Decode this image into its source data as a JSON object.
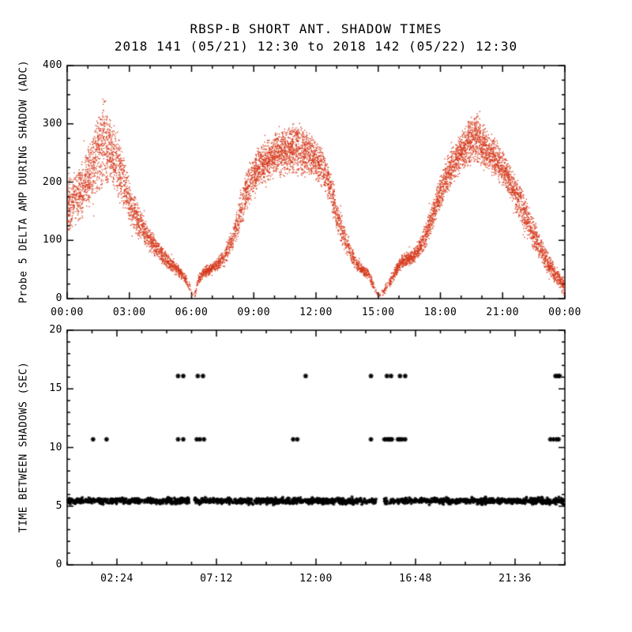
{
  "page": {
    "background": "#ffffff",
    "text_color": "#000000"
  },
  "title": "RBSP-B SHORT ANT. SHADOW TIMES",
  "subtitle": "2018 141 (05/21) 12:30 to 2018 142 (05/22) 12:30",
  "chart_data": [
    {
      "type": "scatter",
      "name": "probe-5-delta-amp-during-shadow",
      "ylabel": "Probe 5 DELTA AMP DURING SHADOW (ADC)",
      "xlim": [
        0,
        24
      ],
      "ylim": [
        0,
        400
      ],
      "xticks": [
        {
          "value": 0,
          "label": "00:00"
        },
        {
          "value": 3,
          "label": "03:00"
        },
        {
          "value": 6,
          "label": "06:00"
        },
        {
          "value": 9,
          "label": "09:00"
        },
        {
          "value": 12,
          "label": "12:00"
        },
        {
          "value": 15,
          "label": "15:00"
        },
        {
          "value": 18,
          "label": "18:00"
        },
        {
          "value": 21,
          "label": "21:00"
        },
        {
          "value": 24,
          "label": "00:00"
        }
      ],
      "yticks": [
        0,
        100,
        200,
        300,
        400
      ],
      "x_minor_step": 1,
      "y_minor_step": 25,
      "marker": "dot",
      "color": "#d5381b",
      "grid": false,
      "points_per_hour": 420,
      "envelope": {
        "format": [
          "hour",
          "min_adc",
          "max_adc",
          "density"
        ],
        "points": [
          [
            0.0,
            110,
            210,
            1.0
          ],
          [
            0.4,
            120,
            225,
            1.0
          ],
          [
            0.8,
            140,
            245,
            1.05
          ],
          [
            1.2,
            160,
            285,
            1.1
          ],
          [
            1.5,
            180,
            330,
            1.15
          ],
          [
            1.75,
            195,
            365,
            1.15
          ],
          [
            1.95,
            195,
            330,
            1.1
          ],
          [
            2.15,
            185,
            305,
            1.05
          ],
          [
            2.4,
            170,
            295,
            1.0
          ],
          [
            2.7,
            148,
            250,
            0.95
          ],
          [
            3.0,
            125,
            205,
            0.9
          ],
          [
            3.4,
            105,
            165,
            0.85
          ],
          [
            3.8,
            88,
            135,
            0.8
          ],
          [
            4.2,
            72,
            110,
            0.75
          ],
          [
            4.6,
            58,
            90,
            0.7
          ],
          [
            5.0,
            46,
            72,
            0.7
          ],
          [
            5.4,
            36,
            56,
            0.65
          ],
          [
            5.7,
            26,
            42,
            0.5
          ],
          [
            5.9,
            12,
            28,
            0.2
          ],
          [
            6.0,
            0,
            10,
            0.06
          ],
          [
            6.15,
            2,
            14,
            0.1
          ],
          [
            6.3,
            24,
            44,
            0.5
          ],
          [
            6.6,
            36,
            58,
            0.8
          ],
          [
            6.9,
            42,
            62,
            0.8
          ],
          [
            7.2,
            48,
            70,
            0.6
          ],
          [
            7.6,
            58,
            88,
            0.6
          ],
          [
            8.0,
            85,
            135,
            0.7
          ],
          [
            8.4,
            125,
            195,
            0.85
          ],
          [
            8.8,
            165,
            245,
            0.95
          ],
          [
            9.2,
            190,
            262,
            1.1
          ],
          [
            9.6,
            200,
            275,
            1.1
          ],
          [
            10.0,
            205,
            288,
            1.15
          ],
          [
            10.4,
            210,
            298,
            1.2
          ],
          [
            10.8,
            212,
            302,
            1.2
          ],
          [
            11.2,
            208,
            308,
            1.15
          ],
          [
            11.5,
            205,
            298,
            1.1
          ],
          [
            11.8,
            202,
            285,
            1.05
          ],
          [
            12.1,
            198,
            272,
            1.0
          ],
          [
            12.4,
            185,
            255,
            0.95
          ],
          [
            12.7,
            150,
            220,
            0.9
          ],
          [
            13.0,
            112,
            175,
            0.8
          ],
          [
            13.4,
            76,
            122,
            0.7
          ],
          [
            13.8,
            52,
            82,
            0.6
          ],
          [
            14.2,
            40,
            60,
            0.6
          ],
          [
            14.5,
            33,
            52,
            0.7
          ],
          [
            14.75,
            15,
            32,
            0.25
          ],
          [
            14.95,
            0,
            10,
            0.05
          ],
          [
            15.2,
            3,
            18,
            0.15
          ],
          [
            15.5,
            18,
            38,
            0.4
          ],
          [
            15.8,
            35,
            58,
            0.7
          ],
          [
            16.1,
            52,
            76,
            0.9
          ],
          [
            16.4,
            56,
            82,
            0.95
          ],
          [
            16.7,
            58,
            88,
            0.85
          ],
          [
            17.0,
            70,
            108,
            0.85
          ],
          [
            17.4,
            96,
            148,
            0.9
          ],
          [
            17.8,
            135,
            195,
            1.0
          ],
          [
            18.2,
            170,
            238,
            1.05
          ],
          [
            18.6,
            195,
            268,
            1.1
          ],
          [
            19.0,
            215,
            292,
            1.15
          ],
          [
            19.4,
            228,
            318,
            1.2
          ],
          [
            19.7,
            230,
            330,
            1.2
          ],
          [
            20.0,
            222,
            305,
            1.15
          ],
          [
            20.4,
            212,
            288,
            1.1
          ],
          [
            20.8,
            198,
            268,
            1.05
          ],
          [
            21.2,
            178,
            245,
            1.0
          ],
          [
            21.6,
            148,
            215,
            0.95
          ],
          [
            22.0,
            118,
            182,
            0.9
          ],
          [
            22.4,
            88,
            148,
            0.85
          ],
          [
            22.8,
            62,
            112,
            0.85
          ],
          [
            23.2,
            40,
            80,
            0.8
          ],
          [
            23.6,
            20,
            58,
            0.8
          ],
          [
            23.95,
            5,
            38,
            0.7
          ]
        ]
      }
    },
    {
      "type": "scatter",
      "name": "time-between-shadows",
      "ylabel": "TIME BETWEEN SHADOWS (SEC)",
      "xlim": [
        0,
        24
      ],
      "ylim": [
        0,
        20
      ],
      "xticks": [
        {
          "value": 2.4,
          "label": "02:24"
        },
        {
          "value": 7.2,
          "label": "07:12"
        },
        {
          "value": 12.0,
          "label": "12:00"
        },
        {
          "value": 16.8,
          "label": "16:48"
        },
        {
          "value": 21.6,
          "label": "21:36"
        }
      ],
      "yticks": [
        0,
        5,
        10,
        15,
        20
      ],
      "x_minor_step": 1.2,
      "y_minor_step": 1,
      "marker": "asterisk",
      "color": "#000000",
      "grid": false,
      "y_levels_sec": [
        5.45,
        10.7,
        16.1
      ],
      "band": {
        "y": 5.45,
        "x_start": 0.05,
        "x_end": 23.95,
        "gaps": [
          [
            5.88,
            6.14
          ],
          [
            14.9,
            15.28
          ]
        ],
        "count": 1500,
        "jitter": 0.12
      },
      "clusters": [
        {
          "y": 10.7,
          "x": [
            1.25,
            1.9,
            5.35,
            5.6,
            6.25,
            6.4,
            6.6,
            10.9,
            11.1,
            14.65,
            15.3,
            15.42,
            15.5,
            15.58,
            15.66,
            15.95,
            16.05,
            16.15,
            16.3,
            23.3,
            23.45,
            23.6,
            23.7
          ]
        },
        {
          "y": 16.1,
          "x": [
            5.35,
            5.6,
            6.3,
            6.55,
            11.5,
            14.65,
            15.42,
            15.62,
            16.05,
            16.3,
            23.55,
            23.65,
            23.75
          ]
        }
      ]
    }
  ]
}
